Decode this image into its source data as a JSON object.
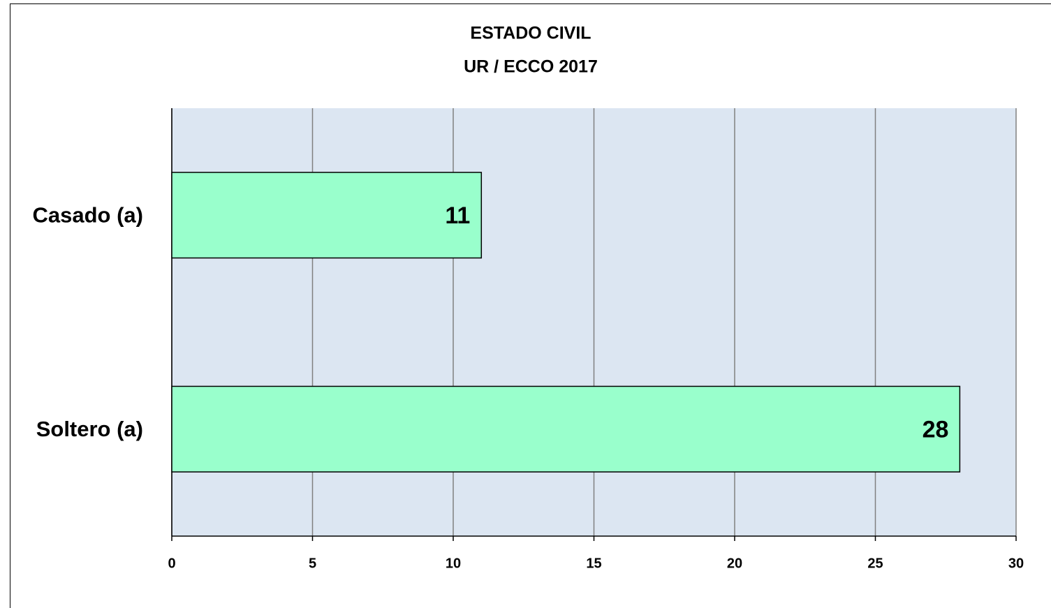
{
  "chart_data": {
    "type": "bar",
    "orientation": "horizontal",
    "title": "ESTADO CIVIL",
    "subtitle": "UR / ECCO 2017",
    "categories": [
      "Casado (a)",
      "Soltero (a)"
    ],
    "values": [
      11,
      28
    ],
    "color": "#99ffcc",
    "xlim": [
      0,
      30
    ],
    "xticks": [
      0,
      5,
      10,
      15,
      20,
      25,
      30
    ],
    "grid": true
  }
}
